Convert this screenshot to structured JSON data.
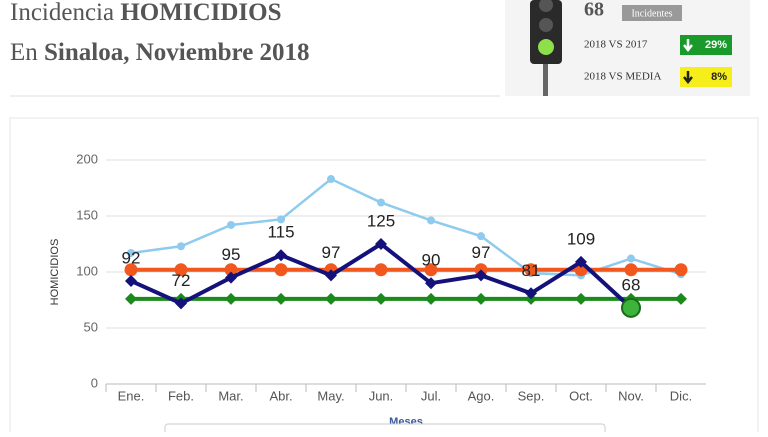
{
  "header": {
    "line1": {
      "prefix": "Incidencia",
      "bold": "HOMICIDIOS"
    },
    "line2": {
      "prefix": "En",
      "bold": "Sinaloa, Noviembre 2018"
    }
  },
  "widget": {
    "count": 68,
    "count_label": "Incidentes",
    "rows": [
      {
        "label": "2018 VS 2017",
        "value": "29%",
        "color": "#1a9a2a"
      },
      {
        "label": "2018 VS MEDIA",
        "value": "8%",
        "color": "#f5ee1a"
      }
    ]
  },
  "chart_data": {
    "type": "line",
    "categories": [
      "Ene.",
      "Feb.",
      "Mar.",
      "Abr.",
      "May.",
      "Jun.",
      "Jul.",
      "Ago.",
      "Sep.",
      "Oct.",
      "Nov.",
      "Dic."
    ],
    "x_label": "Meses",
    "y_label": "HOMICIDIOS",
    "ylim": [
      0,
      200
    ],
    "yticks": [
      0,
      50,
      100,
      150,
      200
    ],
    "grid": true,
    "series": [
      {
        "color": "#8ecbee",
        "marker": "circle",
        "values": [
          117,
          123,
          142,
          147,
          183,
          162,
          146,
          132,
          99,
          97,
          112,
          98
        ]
      },
      {
        "color": "#f2571d",
        "marker": "bigcircle",
        "values": [
          102,
          102,
          102,
          102,
          102,
          102,
          102,
          102,
          102,
          102,
          102,
          102
        ]
      },
      {
        "color": "#1a8a1a",
        "marker": "diamond",
        "values": [
          76,
          76,
          76,
          76,
          76,
          76,
          76,
          76,
          76,
          76,
          76,
          76
        ]
      },
      {
        "color": "#14127a",
        "marker": "diamond",
        "labels": true,
        "values": [
          92,
          72,
          95,
          115,
          97,
          125,
          90,
          97,
          81,
          109,
          68,
          null
        ]
      }
    ]
  }
}
